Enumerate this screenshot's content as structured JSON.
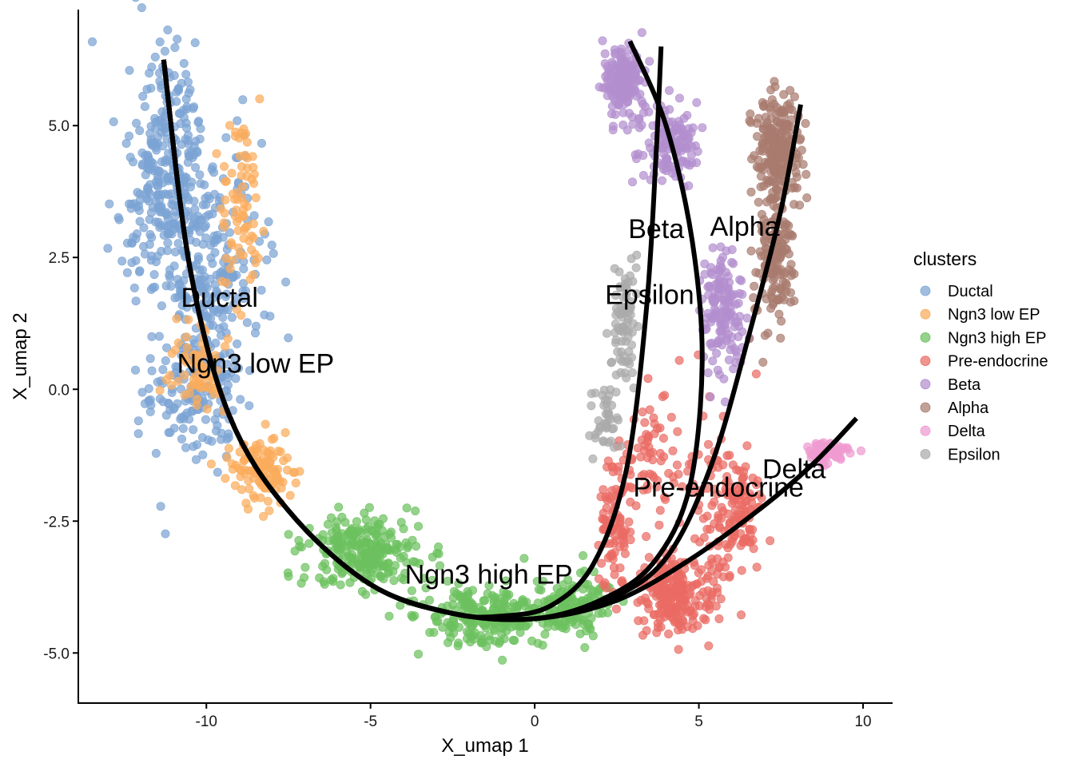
{
  "chart_data": {
    "type": "scatter",
    "title": "",
    "xlabel": "X_umap 1",
    "ylabel": "X_umap 2",
    "xlim": [
      -13.9,
      10.9
    ],
    "ylim": [
      -5.95,
      7.2
    ],
    "grid": false,
    "x_ticks": [
      -10,
      -5,
      0,
      5,
      10
    ],
    "x_tick_labels": [
      "-10",
      "-5",
      "0",
      "5",
      "10"
    ],
    "y_ticks": [
      -5,
      -2.5,
      0,
      2.5,
      5
    ],
    "y_tick_labels": [
      "-5.0",
      "-2.5",
      "0.0",
      "2.5",
      "5.0"
    ],
    "legend": {
      "title": "clusters",
      "placement": "right",
      "entries": [
        {
          "name": "Ductal",
          "color": "#7ba3d4"
        },
        {
          "name": "Ngn3 low EP",
          "color": "#fbac5c"
        },
        {
          "name": "Ngn3 high EP",
          "color": "#6cc15e"
        },
        {
          "name": "Pre-endocrine",
          "color": "#ea6b64"
        },
        {
          "name": "Beta",
          "color": "#b38fce"
        },
        {
          "name": "Alpha",
          "color": "#a97b6f"
        },
        {
          "name": "Delta",
          "color": "#ef9ad0"
        },
        {
          "name": "Epsilon",
          "color": "#ababab"
        }
      ]
    },
    "cluster_labels": [
      {
        "text": "Ductal",
        "x": -9.6,
        "y": 1.7
      },
      {
        "text": "Ngn3 low EP",
        "x": -8.5,
        "y": 0.45
      },
      {
        "text": "Ngn3 high EP",
        "x": -1.4,
        "y": -3.55
      },
      {
        "text": "Pre-endocrine",
        "x": 5.6,
        "y": -1.9
      },
      {
        "text": "Beta",
        "x": 3.7,
        "y": 3.0
      },
      {
        "text": "Alpha",
        "x": 6.4,
        "y": 3.05
      },
      {
        "text": "Epsilon",
        "x": 3.5,
        "y": 1.75
      },
      {
        "text": "Delta",
        "x": 7.9,
        "y": -1.55
      }
    ],
    "clusters": [
      {
        "name": "Ductal",
        "color": "#7ba3d4",
        "n": 700,
        "regions": [
          [
            -11.2,
            4.2,
            0.95,
            1.75,
            0.45
          ],
          [
            -10.0,
            2.2,
            1.3,
            1.9,
            0.35
          ],
          [
            -10.4,
            -0.2,
            1.15,
            0.9,
            0.2
          ]
        ]
      },
      {
        "name": "Ngn3 low EP",
        "color": "#fbac5c",
        "n": 260,
        "regions": [
          [
            -8.9,
            3.6,
            0.55,
            1.6,
            0.3
          ],
          [
            -8.3,
            -1.5,
            0.8,
            0.55,
            0.45
          ],
          [
            -10.2,
            0.4,
            0.8,
            0.7,
            0.25
          ]
        ]
      },
      {
        "name": "Ngn3 high EP",
        "color": "#6cc15e",
        "n": 600,
        "regions": [
          [
            -5.2,
            -3.1,
            1.4,
            0.55,
            0.45
          ],
          [
            -1.5,
            -4.3,
            1.6,
            0.45,
            0.4
          ],
          [
            1.2,
            -4.1,
            0.9,
            0.4,
            0.25
          ]
        ]
      },
      {
        "name": "Pre-endocrine",
        "color": "#ea6b64",
        "n": 550,
        "regions": [
          [
            4.2,
            -3.9,
            0.9,
            0.55,
            0.45
          ],
          [
            3.6,
            -1.2,
            0.85,
            1.1,
            0.1
          ],
          [
            5.4,
            -1.6,
            0.6,
            1.4,
            0.1
          ],
          [
            2.4,
            -2.5,
            0.35,
            1.0,
            0.15
          ],
          [
            6.2,
            -2.4,
            0.6,
            0.9,
            0.2
          ]
        ]
      },
      {
        "name": "Beta",
        "color": "#b38fce",
        "n": 460,
        "regions": [
          [
            2.7,
            5.8,
            0.5,
            0.55,
            0.35
          ],
          [
            4.1,
            4.6,
            0.7,
            0.6,
            0.3
          ],
          [
            5.7,
            1.5,
            0.55,
            1.0,
            0.35
          ]
        ]
      },
      {
        "name": "Alpha",
        "color": "#a97b6f",
        "n": 380,
        "regions": [
          [
            7.4,
            4.6,
            0.55,
            0.75,
            0.6
          ],
          [
            7.3,
            2.4,
            0.5,
            1.0,
            0.4
          ]
        ]
      },
      {
        "name": "Delta",
        "color": "#ef9ad0",
        "n": 65,
        "regions": [
          [
            8.9,
            -1.2,
            0.55,
            0.15,
            1.0
          ]
        ]
      },
      {
        "name": "Epsilon",
        "color": "#ababab",
        "n": 120,
        "regions": [
          [
            2.7,
            1.4,
            0.35,
            1.15,
            0.6
          ],
          [
            2.1,
            -0.6,
            0.3,
            0.55,
            0.4
          ]
        ]
      }
    ],
    "trajectories": [
      {
        "points": [
          [
            -11.3,
            6.25
          ],
          [
            -10.5,
            2.3
          ],
          [
            -9.3,
            -0.5
          ],
          [
            -7.5,
            -2.3
          ],
          [
            -5.0,
            -3.7
          ],
          [
            -2.5,
            -4.25
          ],
          [
            -1.0,
            -4.3
          ],
          [
            0.5,
            -4.1
          ],
          [
            1.8,
            -3.3
          ],
          [
            2.8,
            -1.5
          ],
          [
            3.4,
            1.5
          ],
          [
            3.7,
            4.5
          ],
          [
            3.85,
            6.5
          ]
        ]
      },
      {
        "points": [
          [
            -11.3,
            6.25
          ],
          [
            -10.5,
            2.3
          ],
          [
            -9.3,
            -0.5
          ],
          [
            -7.5,
            -2.3
          ],
          [
            -5.0,
            -3.7
          ],
          [
            -2.5,
            -4.25
          ],
          [
            0.0,
            -4.35
          ],
          [
            2.0,
            -4.0
          ],
          [
            3.6,
            -3.3
          ],
          [
            4.7,
            -1.9
          ],
          [
            5.1,
            0.5
          ],
          [
            4.8,
            2.8
          ],
          [
            4.0,
            5.0
          ],
          [
            2.9,
            6.6
          ]
        ]
      },
      {
        "points": [
          [
            -11.3,
            6.25
          ],
          [
            -10.5,
            2.3
          ],
          [
            -9.3,
            -0.5
          ],
          [
            -7.5,
            -2.3
          ],
          [
            -5.0,
            -3.7
          ],
          [
            -2.5,
            -4.25
          ],
          [
            0.0,
            -4.35
          ],
          [
            2.2,
            -4.0
          ],
          [
            4.0,
            -3.2
          ],
          [
            5.4,
            -1.4
          ],
          [
            6.6,
            1.2
          ],
          [
            7.5,
            3.4
          ],
          [
            8.1,
            5.4
          ]
        ]
      },
      {
        "points": [
          [
            -11.3,
            6.25
          ],
          [
            -10.5,
            2.3
          ],
          [
            -9.3,
            -0.5
          ],
          [
            -7.5,
            -2.3
          ],
          [
            -5.0,
            -3.7
          ],
          [
            -2.5,
            -4.25
          ],
          [
            0.0,
            -4.35
          ],
          [
            2.5,
            -4.0
          ],
          [
            4.8,
            -3.2
          ],
          [
            7.0,
            -2.2
          ],
          [
            8.5,
            -1.4
          ],
          [
            9.8,
            -0.55
          ]
        ]
      }
    ]
  }
}
